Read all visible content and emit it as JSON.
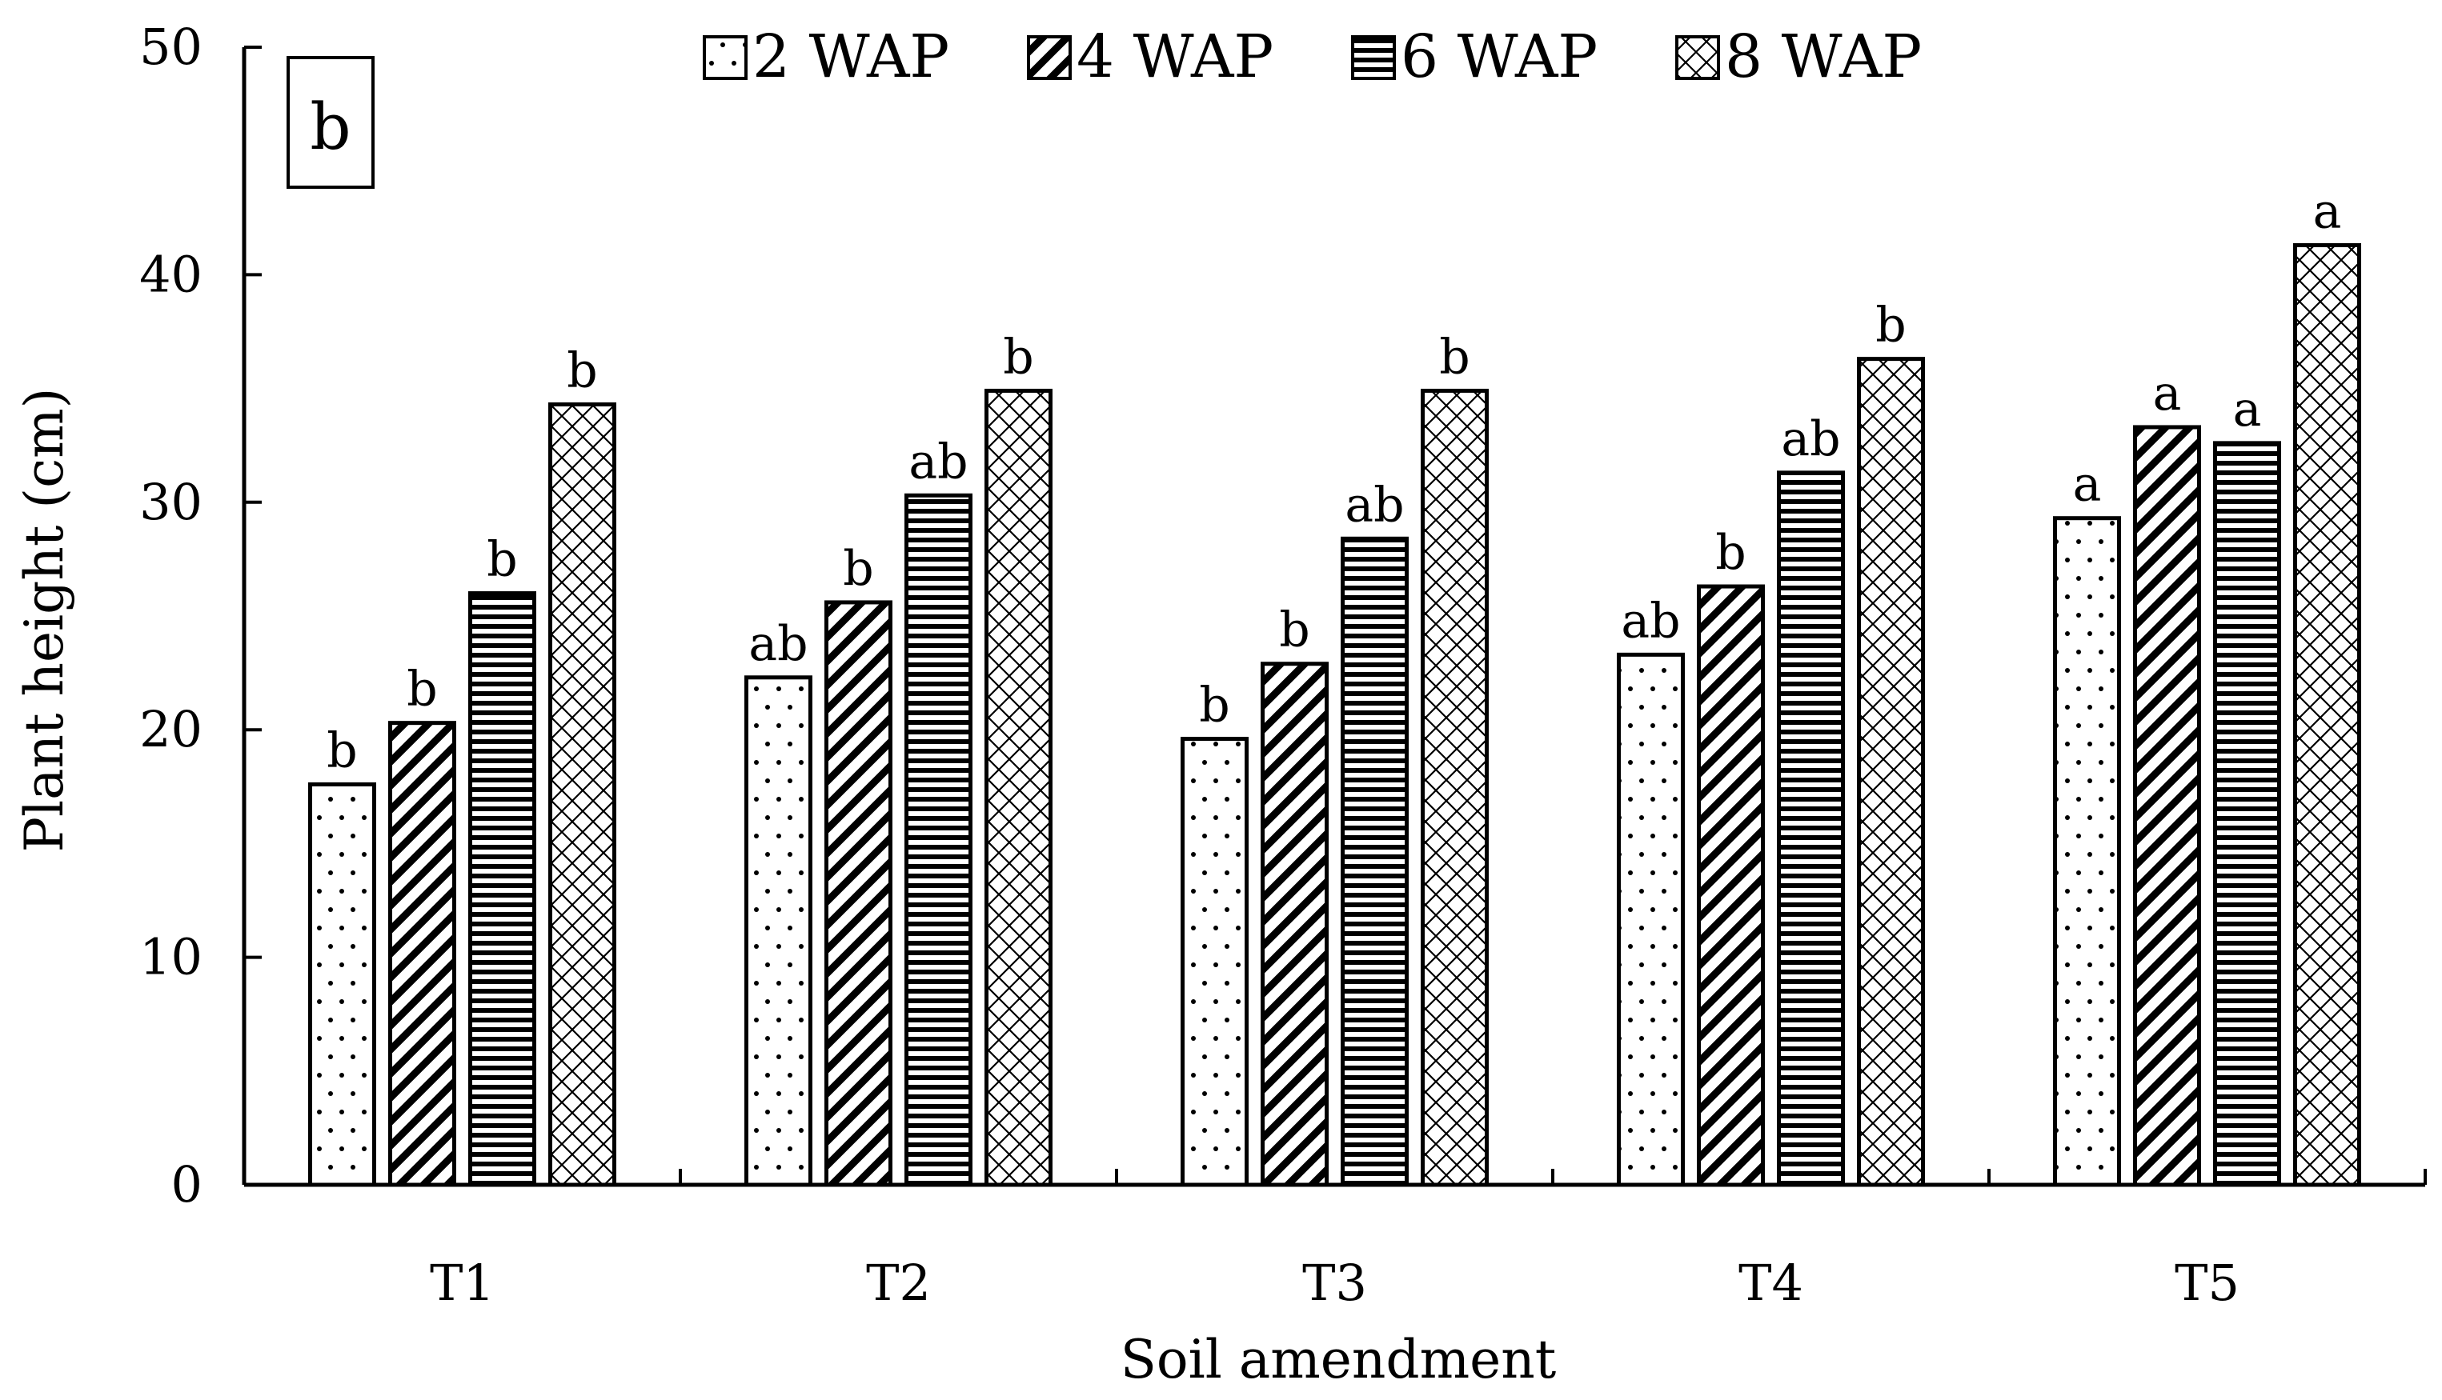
{
  "chart_data": {
    "type": "bar",
    "panel_label": "b",
    "xlabel": "Soil amendment",
    "ylabel": "Plant height (cm)",
    "ylim": [
      0,
      50
    ],
    "yticks": [
      0,
      10,
      20,
      30,
      40,
      50
    ],
    "categories": [
      "T1",
      "T2",
      "T3",
      "T4",
      "T5"
    ],
    "legend_position": "top",
    "series": [
      {
        "name": "2 WAP",
        "pattern": "dots",
        "values": [
          17.6,
          22.3,
          19.6,
          23.3,
          29.3
        ],
        "labels": [
          "b",
          "ab",
          "b",
          "ab",
          "a"
        ]
      },
      {
        "name": "4 WAP",
        "pattern": "diagonal",
        "values": [
          20.3,
          25.6,
          22.9,
          26.3,
          33.3
        ],
        "labels": [
          "b",
          "b",
          "b",
          "b",
          "a"
        ]
      },
      {
        "name": "6 WAP",
        "pattern": "horizontal",
        "values": [
          26.0,
          30.3,
          28.4,
          31.3,
          32.6
        ],
        "labels": [
          "b",
          "ab",
          "ab",
          "ab",
          "a"
        ]
      },
      {
        "name": "8 WAP",
        "pattern": "crosshatch",
        "values": [
          34.3,
          34.9,
          34.9,
          36.3,
          41.3
        ],
        "labels": [
          "b",
          "b",
          "b",
          "b",
          "a"
        ]
      }
    ]
  }
}
